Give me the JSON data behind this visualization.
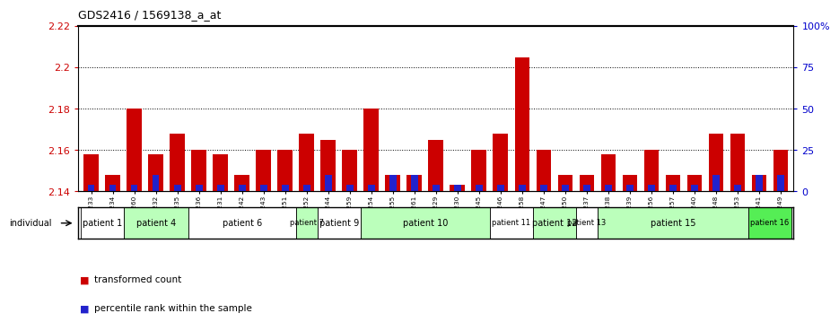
{
  "title": "GDS2416 / 1569138_a_at",
  "ylim_left": [
    2.14,
    2.22
  ],
  "ylim_right": [
    0,
    100
  ],
  "yticks_left": [
    2.14,
    2.16,
    2.18,
    2.2,
    2.22
  ],
  "yticks_right": [
    0,
    25,
    50,
    75,
    100
  ],
  "ytick_labels_left": [
    "2.14",
    "2.16",
    "2.18",
    "2.2",
    "2.22"
  ],
  "ytick_labels_right": [
    "0",
    "25",
    "50",
    "75",
    "100%"
  ],
  "samples": [
    "GSM135233",
    "GSM135234",
    "GSM135260",
    "GSM135232",
    "GSM135235",
    "GSM135236",
    "GSM135231",
    "GSM135242",
    "GSM135243",
    "GSM135251",
    "GSM135252",
    "GSM135244",
    "GSM135259",
    "GSM135254",
    "GSM135255",
    "GSM135261",
    "GSM135229",
    "GSM135230",
    "GSM135245",
    "GSM135246",
    "GSM135258",
    "GSM135247",
    "GSM135250",
    "GSM135237",
    "GSM135238",
    "GSM135239",
    "GSM135256",
    "GSM135257",
    "GSM135240",
    "GSM135248",
    "GSM135253",
    "GSM135241",
    "GSM135249"
  ],
  "red_values": [
    2.158,
    2.148,
    2.18,
    2.158,
    2.168,
    2.16,
    2.158,
    2.148,
    2.16,
    2.16,
    2.168,
    2.165,
    2.16,
    2.18,
    2.148,
    2.148,
    2.165,
    2.143,
    2.16,
    2.168,
    2.205,
    2.16,
    2.148,
    2.148,
    2.158,
    2.148,
    2.16,
    2.148,
    2.148,
    2.168,
    2.168,
    2.148,
    2.16
  ],
  "blue_values": [
    2.143,
    2.143,
    2.143,
    2.148,
    2.143,
    2.143,
    2.143,
    2.143,
    2.143,
    2.143,
    2.143,
    2.148,
    2.143,
    2.143,
    2.148,
    2.148,
    2.143,
    2.143,
    2.143,
    2.143,
    2.143,
    2.143,
    2.143,
    2.143,
    2.143,
    2.143,
    2.143,
    2.143,
    2.143,
    2.148,
    2.143,
    2.148,
    2.148
  ],
  "patients": [
    {
      "label": "patient 1",
      "start": 0,
      "end": 2,
      "color": "#ffffff",
      "fontsize": 7
    },
    {
      "label": "patient 4",
      "start": 2,
      "end": 5,
      "color": "#bbffbb",
      "fontsize": 7
    },
    {
      "label": "patient 6",
      "start": 5,
      "end": 10,
      "color": "#ffffff",
      "fontsize": 7
    },
    {
      "label": "patient 7",
      "start": 10,
      "end": 11,
      "color": "#bbffbb",
      "fontsize": 6
    },
    {
      "label": "patient 9",
      "start": 11,
      "end": 13,
      "color": "#ffffff",
      "fontsize": 7
    },
    {
      "label": "patient 10",
      "start": 13,
      "end": 19,
      "color": "#bbffbb",
      "fontsize": 7
    },
    {
      "label": "patient 11",
      "start": 19,
      "end": 21,
      "color": "#ffffff",
      "fontsize": 6
    },
    {
      "label": "patient 12",
      "start": 21,
      "end": 23,
      "color": "#bbffbb",
      "fontsize": 7
    },
    {
      "label": "patient 13",
      "start": 23,
      "end": 24,
      "color": "#ffffff",
      "fontsize": 6
    },
    {
      "label": "patient 15",
      "start": 24,
      "end": 31,
      "color": "#bbffbb",
      "fontsize": 7
    },
    {
      "label": "patient 16",
      "start": 31,
      "end": 33,
      "color": "#55ee55",
      "fontsize": 6
    }
  ],
  "bar_width": 0.7,
  "baseline": 2.14,
  "bar_red_color": "#cc0000",
  "bar_blue_color": "#2222cc",
  "tick_color_left": "#cc0000",
  "tick_color_right": "#0000cc",
  "bg_color": "#ffffff",
  "legend_red_label": "transformed count",
  "legend_blue_label": "percentile rank within the sample"
}
